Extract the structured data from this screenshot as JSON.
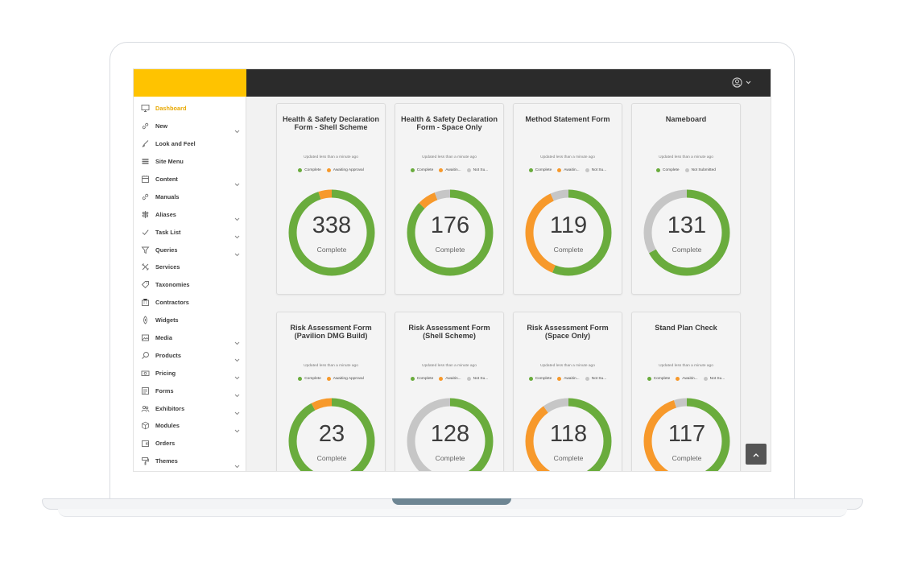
{
  "colors": {
    "brand": "#ffc300",
    "topbar": "#2b2b2b",
    "complete": "#6aac3d",
    "awaiting": "#f7992b",
    "not_submitted": "#c6c6c6"
  },
  "header": {
    "user_icon": "user-circle-icon",
    "chevron_icon": "chevron-down-icon"
  },
  "sidebar": {
    "items": [
      {
        "label": "Dashboard",
        "icon": "monitor-icon",
        "has_children": false,
        "active": true
      },
      {
        "label": "New",
        "icon": "link-icon",
        "has_children": true
      },
      {
        "label": "Look and Feel",
        "icon": "brush-icon",
        "has_children": false
      },
      {
        "label": "Site Menu",
        "icon": "menu-icon",
        "has_children": false
      },
      {
        "label": "Content",
        "icon": "content-icon",
        "has_children": true
      },
      {
        "label": "Manuals",
        "icon": "link-icon",
        "has_children": false
      },
      {
        "label": "Aliases",
        "icon": "signpost-icon",
        "has_children": true
      },
      {
        "label": "Task List",
        "icon": "check-icon",
        "has_children": true
      },
      {
        "label": "Queries",
        "icon": "filter-icon",
        "has_children": true
      },
      {
        "label": "Services",
        "icon": "tools-icon",
        "has_children": false
      },
      {
        "label": "Taxonomies",
        "icon": "tag-icon",
        "has_children": false
      },
      {
        "label": "Contractors",
        "icon": "building-icon",
        "has_children": false
      },
      {
        "label": "Widgets",
        "icon": "widget-icon",
        "has_children": false
      },
      {
        "label": "Media",
        "icon": "image-icon",
        "has_children": true
      },
      {
        "label": "Products",
        "icon": "product-icon",
        "has_children": true
      },
      {
        "label": "Pricing",
        "icon": "money-icon",
        "has_children": true
      },
      {
        "label": "Forms",
        "icon": "form-icon",
        "has_children": true
      },
      {
        "label": "Exhibitors",
        "icon": "users-icon",
        "has_children": true
      },
      {
        "label": "Modules",
        "icon": "cube-icon",
        "has_children": true
      },
      {
        "label": "Orders",
        "icon": "wallet-icon",
        "has_children": false
      },
      {
        "label": "Themes",
        "icon": "paint-roller-icon",
        "has_children": true
      }
    ]
  },
  "legend_labels": {
    "complete": "Complete",
    "awaiting_full": "Awaiting Approval",
    "awaiting_short": "Awaitin...",
    "not_submitted_full": "Not Submitted",
    "not_submitted_short": "Not Su..."
  },
  "cards": [
    {
      "title": "Health & Safety Declaration Form - Shell Scheme",
      "updated": "Updated less than a minute ago",
      "legend": [
        "Complete",
        "Awaiting Approval"
      ],
      "value": "338",
      "value_label": "Complete",
      "segments": [
        {
          "status": "complete",
          "fraction": 0.948
        },
        {
          "status": "awaiting",
          "fraction": 0.052
        }
      ]
    },
    {
      "title": "Health & Safety Declaration Form - Space Only",
      "updated": "Updated less than a minute ago",
      "legend": [
        "Complete",
        "Awaitin...",
        "Not Su..."
      ],
      "value": "176",
      "value_label": "Complete",
      "segments": [
        {
          "status": "complete",
          "fraction": 0.87
        },
        {
          "status": "awaiting",
          "fraction": 0.07
        },
        {
          "status": "not_submitted",
          "fraction": 0.06
        }
      ]
    },
    {
      "title": "Method Statement Form",
      "updated": "Updated less than a minute ago",
      "legend": [
        "Complete",
        "Awaitin...",
        "Not Su..."
      ],
      "value": "119",
      "value_label": "Complete",
      "segments": [
        {
          "status": "complete",
          "fraction": 0.56
        },
        {
          "status": "awaiting",
          "fraction": 0.37
        },
        {
          "status": "not_submitted",
          "fraction": 0.07
        }
      ]
    },
    {
      "title": "Nameboard",
      "updated": "Updated less than a minute ago",
      "legend": [
        "Complete",
        "Not Submitted"
      ],
      "value": "131",
      "value_label": "Complete",
      "segments": [
        {
          "status": "complete",
          "fraction": 0.67
        },
        {
          "status": "not_submitted",
          "fraction": 0.33
        }
      ]
    },
    {
      "title": "Risk Assessment Form (Pavilion DMG Build)",
      "updated": "Updated less than a minute ago",
      "legend": [
        "Complete",
        "Awaiting Approval"
      ],
      "value": "23",
      "value_label": "Complete",
      "segments": [
        {
          "status": "complete",
          "fraction": 0.92
        },
        {
          "status": "awaiting",
          "fraction": 0.08
        }
      ]
    },
    {
      "title": "Risk Assessment Form (Shell Scheme)",
      "updated": "Updated less than a minute ago",
      "legend": [
        "Complete",
        "Awaitin...",
        "Not Su..."
      ],
      "value": "128",
      "value_label": "Complete",
      "segments": [
        {
          "status": "complete",
          "fraction": 0.5
        },
        {
          "status": "awaiting",
          "fraction": 0.0
        },
        {
          "status": "not_submitted",
          "fraction": 0.5
        }
      ]
    },
    {
      "title": "Risk Assessment Form (Space Only)",
      "updated": "Updated less than a minute ago",
      "legend": [
        "Complete",
        "Awaitin...",
        "Not Su..."
      ],
      "value": "118",
      "value_label": "Complete",
      "segments": [
        {
          "status": "complete",
          "fraction": 0.5
        },
        {
          "status": "awaiting",
          "fraction": 0.4
        },
        {
          "status": "not_submitted",
          "fraction": 0.1
        }
      ]
    },
    {
      "title": "Stand Plan Check",
      "updated": "Updated less than a minute ago",
      "legend": [
        "Complete",
        "Awaitin...",
        "Not Su..."
      ],
      "value": "117",
      "value_label": "Complete",
      "segments": [
        {
          "status": "complete",
          "fraction": 0.5
        },
        {
          "status": "awaiting",
          "fraction": 0.45
        },
        {
          "status": "not_submitted",
          "fraction": 0.05
        }
      ]
    }
  ],
  "scroll_top_icon": "chevron-up-icon"
}
